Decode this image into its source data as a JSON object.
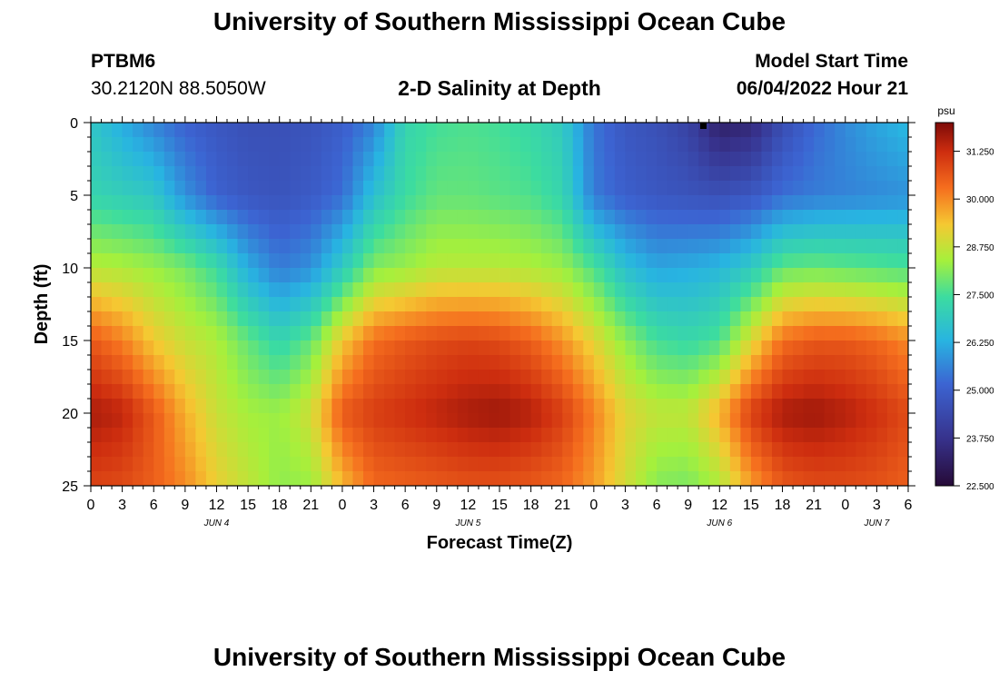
{
  "page": {
    "title": "University of Southern Mississippi Ocean Cube",
    "footer_title": "University of Southern Mississippi Ocean Cube",
    "station_id": "PTBM6",
    "station_coords": "30.2120N  88.5050W",
    "plot_title": "2-D Salinity at Depth",
    "model_label": "Model Start Time",
    "model_time": "06/04/2022 Hour 21"
  },
  "chart_data": {
    "type": "heatmap",
    "title": "2-D Salinity at Depth",
    "xlabel": "Forecast Time(Z)",
    "ylabel": "Depth (ft)",
    "units": "psu",
    "x_range_hours": [
      0,
      78
    ],
    "x_ticks": [
      {
        "h": 0,
        "label": "0"
      },
      {
        "h": 3,
        "label": "3"
      },
      {
        "h": 6,
        "label": "6"
      },
      {
        "h": 9,
        "label": "9"
      },
      {
        "h": 12,
        "label": "12"
      },
      {
        "h": 15,
        "label": "15"
      },
      {
        "h": 18,
        "label": "18"
      },
      {
        "h": 21,
        "label": "21"
      },
      {
        "h": 24,
        "label": "0"
      },
      {
        "h": 27,
        "label": "3"
      },
      {
        "h": 30,
        "label": "6"
      },
      {
        "h": 33,
        "label": "9"
      },
      {
        "h": 36,
        "label": "12"
      },
      {
        "h": 39,
        "label": "15"
      },
      {
        "h": 42,
        "label": "18"
      },
      {
        "h": 45,
        "label": "21"
      },
      {
        "h": 48,
        "label": "0"
      },
      {
        "h": 51,
        "label": "3"
      },
      {
        "h": 54,
        "label": "6"
      },
      {
        "h": 57,
        "label": "9"
      },
      {
        "h": 60,
        "label": "12"
      },
      {
        "h": 63,
        "label": "15"
      },
      {
        "h": 66,
        "label": "18"
      },
      {
        "h": 69,
        "label": "21"
      },
      {
        "h": 72,
        "label": "0"
      },
      {
        "h": 75,
        "label": "3"
      },
      {
        "h": 78,
        "label": "6"
      }
    ],
    "day_labels": [
      {
        "h": 12,
        "label": "JUN 4"
      },
      {
        "h": 36,
        "label": "JUN 5"
      },
      {
        "h": 60,
        "label": "JUN 6"
      },
      {
        "h": 75,
        "label": "JUN 7"
      }
    ],
    "y_range_ft": [
      0,
      25
    ],
    "y_ticks": [
      0,
      5,
      10,
      15,
      20,
      25
    ],
    "colorbar": {
      "min": 22.5,
      "max": 32.0,
      "ticks": [
        "31.250",
        "30.000",
        "28.750",
        "27.500",
        "26.250",
        "25.000",
        "23.750",
        "22.500"
      ]
    },
    "depth_rows_ft": [
      0,
      5,
      10,
      15,
      20,
      25
    ],
    "time_cols_h": [
      0,
      3,
      6,
      9,
      12,
      15,
      18,
      21,
      24,
      27,
      30,
      33,
      36,
      39,
      42,
      45,
      48,
      51,
      54,
      57,
      60,
      63,
      66,
      69,
      72,
      75,
      78
    ],
    "salinity_psu": [
      [
        26.8,
        26.2,
        25.6,
        25.1,
        24.8,
        24.6,
        24.6,
        24.7,
        25.0,
        25.6,
        27.2,
        27.5,
        27.6,
        27.5,
        27.3,
        26.9,
        25.4,
        24.8,
        24.6,
        24.2,
        23.2,
        23.4,
        24.5,
        25.2,
        25.7,
        26.1,
        26.4
      ],
      [
        27.2,
        27.0,
        26.8,
        25.8,
        25.1,
        24.8,
        24.7,
        24.9,
        25.3,
        26.6,
        27.4,
        27.8,
        27.8,
        27.7,
        27.6,
        27.2,
        25.5,
        25.0,
        24.8,
        24.7,
        24.6,
        24.8,
        25.3,
        25.5,
        25.6,
        25.7,
        25.8
      ],
      [
        28.6,
        28.5,
        28.3,
        28.0,
        27.4,
        26.2,
        25.5,
        25.8,
        26.9,
        28.1,
        28.3,
        28.6,
        28.6,
        28.6,
        28.5,
        28.3,
        27.6,
        26.6,
        26.1,
        26.2,
        26.4,
        26.9,
        27.8,
        27.9,
        27.8,
        27.7,
        27.6
      ],
      [
        30.6,
        30.1,
        29.3,
        28.8,
        28.5,
        27.8,
        27.2,
        27.8,
        29.3,
        30.3,
        30.6,
        30.8,
        30.9,
        30.8,
        30.5,
        29.9,
        29.1,
        28.2,
        27.5,
        27.3,
        27.6,
        29.0,
        30.3,
        30.6,
        30.6,
        30.4,
        30.0
      ],
      [
        31.6,
        31.4,
        30.6,
        29.6,
        28.8,
        28.4,
        28.3,
        28.9,
        30.6,
        31.0,
        31.2,
        31.4,
        31.6,
        31.7,
        31.5,
        31.0,
        30.1,
        29.1,
        28.7,
        28.7,
        29.6,
        31.0,
        31.6,
        31.7,
        31.5,
        31.2,
        30.8
      ],
      [
        30.9,
        30.8,
        30.5,
        30.0,
        29.2,
        28.7,
        28.2,
        28.3,
        29.5,
        30.4,
        30.5,
        30.6,
        30.7,
        30.7,
        30.6,
        30.4,
        29.8,
        28.9,
        28.1,
        28.0,
        28.5,
        29.8,
        30.6,
        30.8,
        30.8,
        30.7,
        30.5
      ]
    ]
  }
}
